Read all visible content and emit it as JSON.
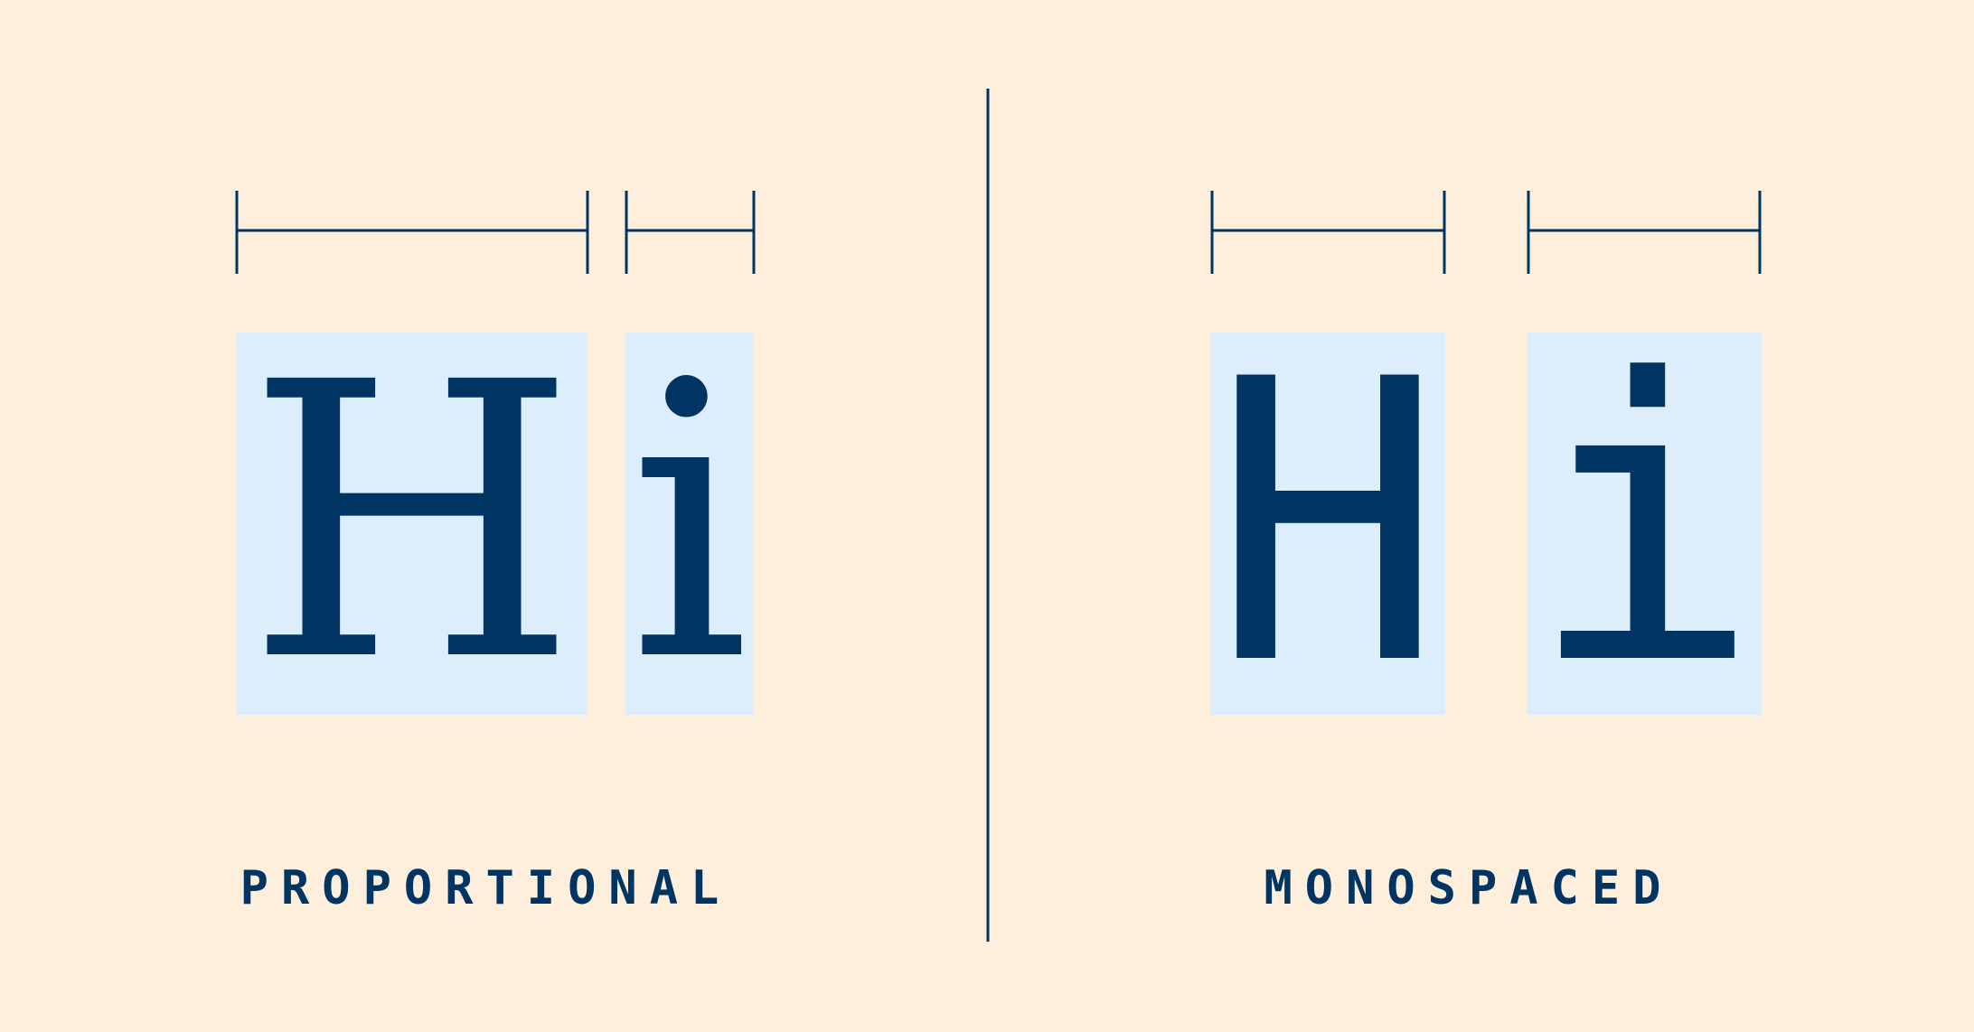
{
  "colors": {
    "background": "#FEEFDD",
    "glyph_box": "#DCEDFB",
    "ink": "#003462"
  },
  "proportional": {
    "label": "PROPORTIONAL",
    "glyphs": [
      {
        "char": "H"
      },
      {
        "char": "i"
      }
    ]
  },
  "monospaced": {
    "label": "MONOSPACED",
    "glyphs": [
      {
        "char": "H"
      },
      {
        "char": "i"
      }
    ]
  }
}
